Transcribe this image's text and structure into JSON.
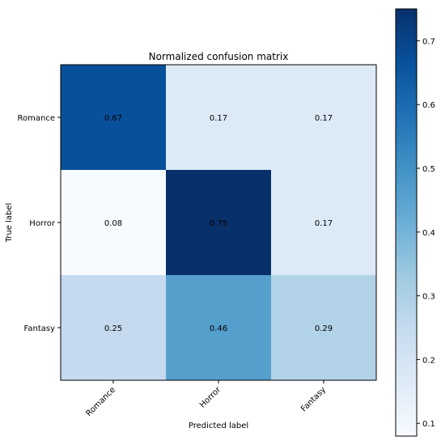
{
  "chart_data": {
    "type": "heatmap",
    "title": "Normalized confusion matrix",
    "xlabel": "Predicted label",
    "ylabel": "True label",
    "x_categories": [
      "Romance",
      "Horror",
      "Fantasy"
    ],
    "y_categories": [
      "Romance",
      "Horror",
      "Fantasy"
    ],
    "values": [
      [
        0.67,
        0.17,
        0.17
      ],
      [
        0.08,
        0.75,
        0.17
      ],
      [
        0.25,
        0.46,
        0.29
      ]
    ],
    "cell_labels": [
      [
        "0.67",
        "0.17",
        "0.17"
      ],
      [
        "0.08",
        "0.75",
        "0.17"
      ],
      [
        "0.25",
        "0.46",
        "0.29"
      ]
    ],
    "colormap": "Blues",
    "colorbar": {
      "range": [
        0.08,
        0.75
      ],
      "ticks": [
        0.1,
        0.2,
        0.3,
        0.4,
        0.5,
        0.6,
        0.7
      ],
      "tick_labels": [
        "0.1",
        "0.2",
        "0.3",
        "0.4",
        "0.5",
        "0.6",
        "0.7"
      ]
    },
    "grid": false
  }
}
